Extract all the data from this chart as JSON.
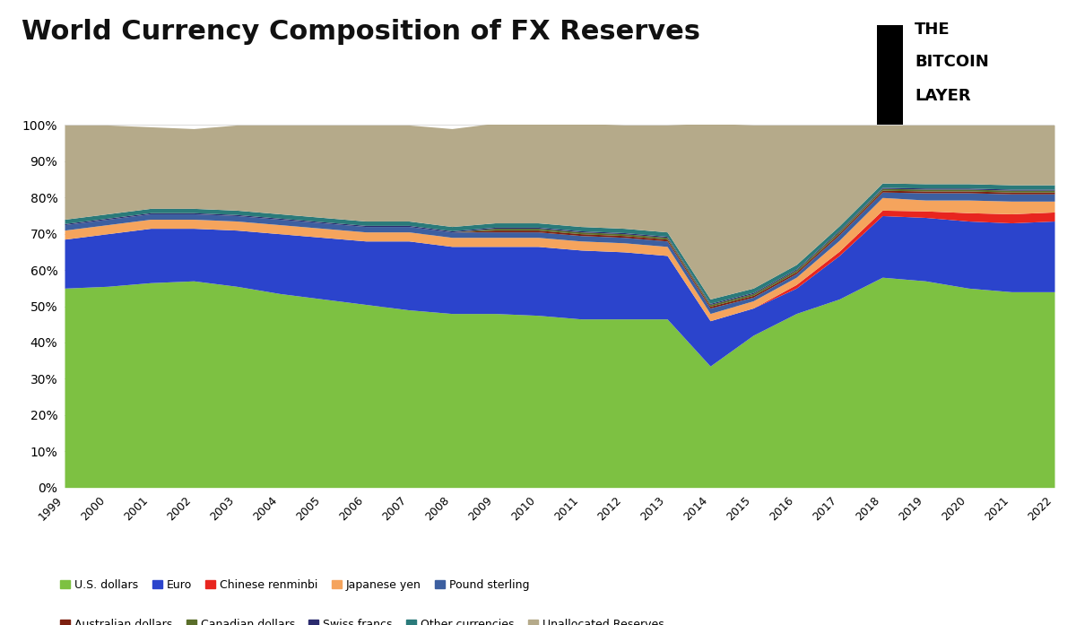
{
  "title": "World Currency Composition of FX Reserves",
  "years": [
    1999,
    2000,
    2001,
    2002,
    2003,
    2004,
    2005,
    2006,
    2007,
    2008,
    2009,
    2010,
    2011,
    2012,
    2013,
    2014,
    2015,
    2016,
    2017,
    2018,
    2019,
    2020,
    2021,
    2022
  ],
  "series": {
    "U.S. dollars": [
      55.0,
      55.5,
      56.5,
      57.0,
      55.5,
      53.5,
      52.0,
      50.5,
      49.0,
      48.0,
      48.0,
      47.5,
      46.5,
      46.5,
      46.5,
      33.5,
      42.0,
      48.0,
      52.0,
      58.0,
      57.0,
      55.0,
      54.0,
      54.0
    ],
    "Euro": [
      13.5,
      14.5,
      15.0,
      14.5,
      15.5,
      16.5,
      17.0,
      17.5,
      19.0,
      18.5,
      18.5,
      19.0,
      19.0,
      18.5,
      17.5,
      12.5,
      7.5,
      7.0,
      12.0,
      17.0,
      17.5,
      18.5,
      19.0,
      19.5
    ],
    "Chinese renminbi": [
      0.0,
      0.0,
      0.0,
      0.0,
      0.0,
      0.0,
      0.0,
      0.0,
      0.0,
      0.0,
      0.0,
      0.0,
      0.0,
      0.0,
      0.0,
      0.0,
      0.0,
      1.0,
      1.2,
      1.5,
      1.8,
      2.3,
      2.5,
      2.5
    ],
    "Japanese yen": [
      2.5,
      2.5,
      2.5,
      2.5,
      2.5,
      2.5,
      2.5,
      2.5,
      2.5,
      2.5,
      2.5,
      2.5,
      2.5,
      2.5,
      2.5,
      2.0,
      2.0,
      2.0,
      3.0,
      3.5,
      3.0,
      3.5,
      3.5,
      3.0
    ],
    "Pound sterling": [
      1.5,
      1.5,
      1.5,
      1.5,
      1.5,
      1.5,
      1.5,
      1.5,
      1.5,
      1.5,
      1.5,
      1.5,
      1.5,
      1.5,
      1.5,
      1.5,
      1.0,
      1.0,
      1.5,
      1.5,
      2.0,
      2.0,
      2.0,
      2.0
    ],
    "Australian dollars": [
      0.0,
      0.0,
      0.0,
      0.0,
      0.0,
      0.0,
      0.0,
      0.0,
      0.0,
      0.0,
      0.5,
      0.5,
      0.5,
      0.5,
      0.5,
      0.5,
      0.5,
      0.5,
      0.5,
      0.5,
      0.5,
      0.5,
      0.5,
      0.5
    ],
    "Canadian dollars": [
      0.0,
      0.0,
      0.0,
      0.0,
      0.0,
      0.0,
      0.0,
      0.0,
      0.0,
      0.0,
      0.5,
      0.5,
      0.5,
      0.5,
      0.5,
      0.5,
      0.5,
      0.5,
      0.5,
      0.5,
      0.5,
      0.5,
      0.5,
      0.5
    ],
    "Swiss francs": [
      0.3,
      0.3,
      0.3,
      0.3,
      0.3,
      0.3,
      0.3,
      0.3,
      0.3,
      0.3,
      0.3,
      0.3,
      0.3,
      0.3,
      0.3,
      0.3,
      0.3,
      0.3,
      0.3,
      0.3,
      0.3,
      0.3,
      0.3,
      0.3
    ],
    "Other currencies": [
      1.2,
      1.2,
      1.2,
      1.2,
      1.2,
      1.2,
      1.2,
      1.2,
      1.2,
      1.2,
      1.2,
      1.2,
      1.2,
      1.2,
      1.2,
      1.2,
      1.2,
      1.2,
      1.2,
      1.2,
      1.2,
      1.2,
      1.2,
      1.2
    ],
    "Unallocated Reserves": [
      26.0,
      24.5,
      22.5,
      22.0,
      23.5,
      24.5,
      25.5,
      26.5,
      26.5,
      27.0,
      27.5,
      27.5,
      28.5,
      28.5,
      29.5,
      48.5,
      45.0,
      38.5,
      27.8,
      16.0,
      16.2,
      16.2,
      16.5,
      16.5
    ]
  },
  "colors": {
    "U.S. dollars": "#7dc142",
    "Euro": "#2b44cc",
    "Chinese renminbi": "#e8251f",
    "Japanese yen": "#f5a45d",
    "Pound sterling": "#3d5fa0",
    "Australian dollars": "#7d2010",
    "Canadian dollars": "#5a6e2a",
    "Swiss francs": "#2b2b6e",
    "Other currencies": "#2a7a7a",
    "Unallocated Reserves": "#b5aa8a"
  },
  "legend_order": [
    "U.S. dollars",
    "Euro",
    "Chinese renminbi",
    "Japanese yen",
    "Pound sterling",
    "Australian dollars",
    "Canadian dollars",
    "Swiss francs",
    "Other currencies",
    "Unallocated Reserves"
  ],
  "stack_order_bottom_to_top": [
    "U.S. dollars",
    "Euro",
    "Chinese renminbi",
    "Japanese yen",
    "Pound sterling",
    "Australian dollars",
    "Canadian dollars",
    "Swiss francs",
    "Other currencies",
    "Unallocated Reserves"
  ],
  "ylim": [
    0,
    100
  ],
  "background_color": "#ffffff",
  "logo_bar_color": "#000000",
  "logo_line1": "THE",
  "logo_line2": "BITCOIN",
  "logo_line3": "LAYER"
}
